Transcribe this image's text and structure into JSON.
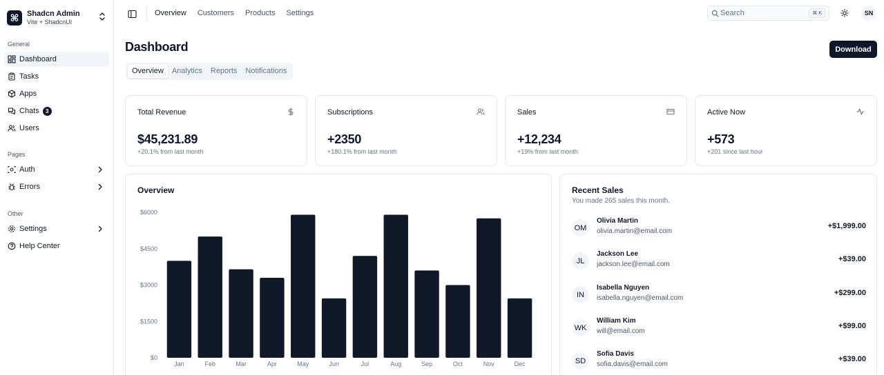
{
  "brand": {
    "title": "Shadcn Admin",
    "subtitle": "Vite + ShadcnUI",
    "logo": "⌘"
  },
  "sidebar": {
    "groups": [
      {
        "label": "General"
      },
      {
        "label": "Pages"
      },
      {
        "label": "Other"
      }
    ],
    "items": [
      {
        "label": "Dashboard",
        "icon": "layout-dashboard-icon"
      },
      {
        "label": "Tasks",
        "icon": "clipboard-icon"
      },
      {
        "label": "Apps",
        "icon": "package-icon"
      },
      {
        "label": "Chats",
        "icon": "messages-icon",
        "badge": "3"
      },
      {
        "label": "Users",
        "icon": "users-icon"
      },
      {
        "label": "Auth",
        "icon": "user-cog-icon"
      },
      {
        "label": "Errors",
        "icon": "bug-icon"
      },
      {
        "label": "Settings",
        "icon": "settings-icon"
      },
      {
        "label": "Help Center",
        "icon": "help-circle-icon"
      }
    ]
  },
  "topnav": {
    "links": [
      "Overview",
      "Customers",
      "Products",
      "Settings"
    ]
  },
  "search": {
    "placeholder": "Search",
    "shortcut": "⌘ K"
  },
  "user": {
    "initials": "SN"
  },
  "page": {
    "title": "Dashboard",
    "download_label": "Download"
  },
  "tabs": [
    "Overview",
    "Analytics",
    "Reports",
    "Notifications"
  ],
  "stats": [
    {
      "title": "Total Revenue",
      "value": "$45,231.89",
      "sub": "+20.1% from last month",
      "icon": "dollar-icon"
    },
    {
      "title": "Subscriptions",
      "value": "+2350",
      "sub": "+180.1% from last month",
      "icon": "users-icon"
    },
    {
      "title": "Sales",
      "value": "+12,234",
      "sub": "+19% from last month",
      "icon": "credit-card-icon"
    },
    {
      "title": "Active Now",
      "value": "+573",
      "sub": "+201 since last hour",
      "icon": "activity-icon"
    }
  ],
  "overview": {
    "title": "Overview"
  },
  "chart_data": {
    "type": "bar",
    "title": "Overview",
    "categories": [
      "Jan",
      "Feb",
      "Mar",
      "Apr",
      "May",
      "Jun",
      "Jul",
      "Aug",
      "Sep",
      "Oct",
      "Nov",
      "Dec"
    ],
    "values": [
      4000,
      5000,
      3650,
      3300,
      5900,
      2450,
      4200,
      5900,
      3600,
      3000,
      5750,
      2450
    ],
    "ylim": [
      0,
      6000
    ],
    "yticks": [
      0,
      1500,
      3000,
      4500,
      6000
    ],
    "ytick_labels": [
      "$0",
      "$1500",
      "$3000",
      "$4500",
      "$6000"
    ],
    "xlabel": "",
    "ylabel": "",
    "bar_color": "#111827"
  },
  "recent_sales": {
    "title": "Recent Sales",
    "subtitle": "You made 265 sales this month.",
    "rows": [
      {
        "initials": "OM",
        "name": "Olivia Martin",
        "email": "olivia.martin@email.com",
        "amount": "+$1,999.00"
      },
      {
        "initials": "JL",
        "name": "Jackson Lee",
        "email": "jackson.lee@email.com",
        "amount": "+$39.00"
      },
      {
        "initials": "IN",
        "name": "Isabella Nguyen",
        "email": "isabella.nguyen@email.com",
        "amount": "+$299.00"
      },
      {
        "initials": "WK",
        "name": "William Kim",
        "email": "will@email.com",
        "amount": "+$99.00"
      },
      {
        "initials": "SD",
        "name": "Sofia Davis",
        "email": "sofia.davis@email.com",
        "amount": "+$39.00"
      }
    ]
  }
}
